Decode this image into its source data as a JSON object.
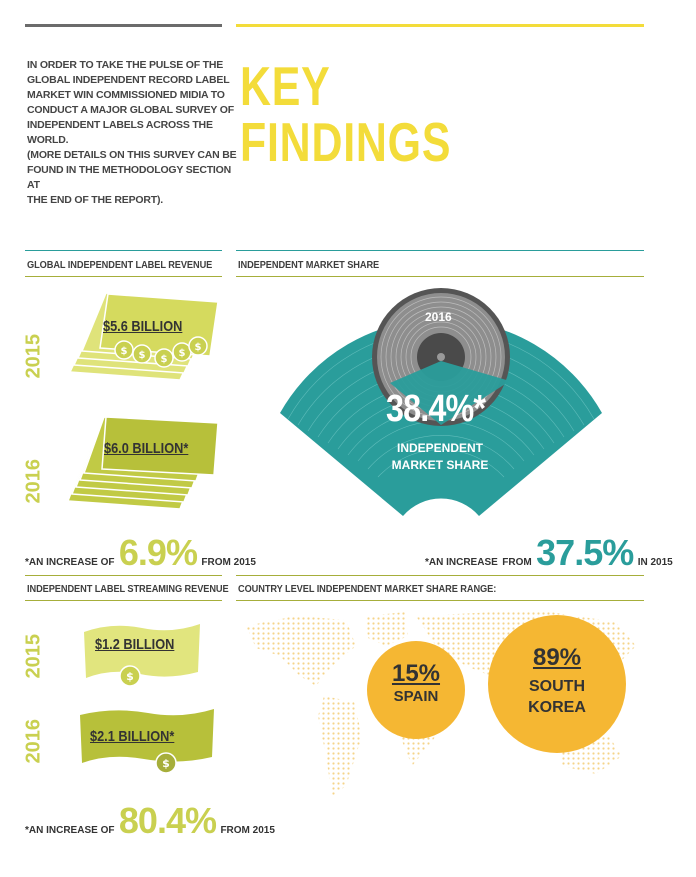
{
  "intro": {
    "lines": [
      "IN ORDER TO TAKE THE PULSE OF THE",
      "GLOBAL INDEPENDENT RECORD LABEL",
      "MARKET WIN COMMISSIONED MIDIA TO",
      "CONDUCT A MAJOR GLOBAL SURVEY OF",
      "INDEPENDENT LABELS ACROSS THE WORLD.",
      "(MORE DETAILS ON THIS SURVEY CAN BE",
      "FOUND IN THE METHODOLOGY SECTION AT",
      "THE END OF THE REPORT)."
    ]
  },
  "title": {
    "line1": "KEY",
    "line2": "FINDINGS"
  },
  "revenue": {
    "label": "GLOBAL INDEPENDENT LABEL REVENUE",
    "year1": "2015",
    "value1": "$5.6 BILLION",
    "year2": "2016",
    "value2": "$6.0 BILLION*",
    "increase_prefix": "*AN INCREASE OF",
    "increase_value": "6.9%",
    "increase_suffix": "FROM 2015"
  },
  "market_share": {
    "label": "INDEPENDENT MARKET SHARE",
    "record_year": "2016",
    "value": "38.4%*",
    "caption_line1": "INDEPENDENT",
    "caption_line2": "MARKET SHARE",
    "increase_prefix": "*AN INCREASE",
    "increase_from": "FROM",
    "increase_value": "37.5%",
    "increase_suffix": "IN 2015"
  },
  "streaming": {
    "label": "INDEPENDENT LABEL STREAMING REVENUE",
    "year1": "2015",
    "value1": "$1.2 BILLION",
    "year2": "2016",
    "value2": "$2.1 BILLION*",
    "increase_prefix": "*AN INCREASE OF",
    "increase_value": "80.4%",
    "increase_suffix": "FROM 2015"
  },
  "country": {
    "label": "COUNTRY LEVEL INDEPENDENT MARKET SHARE RANGE:",
    "low_value": "15%",
    "low_country": "SPAIN",
    "high_value": "89%",
    "high_country_line1": "SOUTH",
    "high_country_line2": "KOREA"
  },
  "colors": {
    "yellow": "#f3dc3a",
    "lime": "#c9d050",
    "olive": "#a6ae3a",
    "teal": "#2a9d9b",
    "orange": "#f5b733",
    "grey": "#6b6b6b"
  }
}
